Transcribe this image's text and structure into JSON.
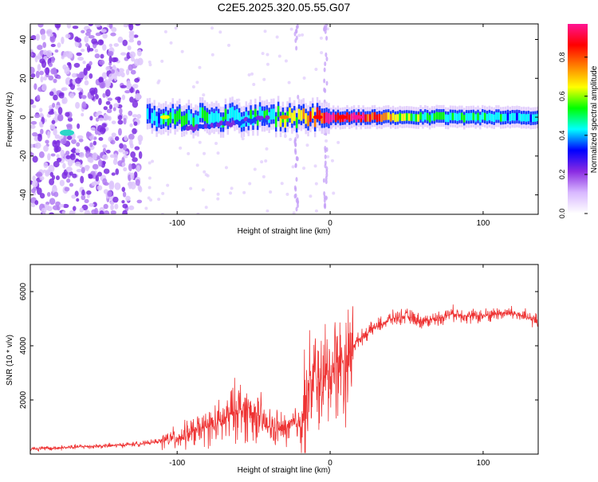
{
  "title": "C2E5.2025.320.05.55.G07",
  "colorbar": {
    "label": "Normalized spectral amplitude",
    "ticks": [
      "0.0",
      "0.2",
      "0.4",
      "0.6",
      "0.8"
    ],
    "tick_values": [
      0.0,
      0.2,
      0.4,
      0.6,
      0.8
    ],
    "range": [
      0,
      0.97
    ],
    "colors": [
      "#ffffff",
      "#d8b8ff",
      "#8a2be2",
      "#0000ff",
      "#00ffff",
      "#00ff00",
      "#ffff00",
      "#ff8000",
      "#ff0000",
      "#ff1493"
    ]
  },
  "chart_data": [
    {
      "type": "heatmap",
      "title": "C2E5.2025.320.05.55.G07",
      "xlabel": "Height of straight line (km)",
      "ylabel": "Frequency (Hz)",
      "xlim": [
        -196,
        136
      ],
      "ylim": [
        -50,
        48
      ],
      "x_ticks": [
        -100,
        0,
        100
      ],
      "x_tick_labels": [
        "-100",
        "0",
        "100"
      ],
      "y_ticks": [
        -40,
        -20,
        0,
        20,
        40
      ],
      "y_tick_labels": [
        "-40",
        "-20",
        "0",
        "20",
        "40"
      ],
      "colorbar_label": "Normalized spectral amplitude",
      "ridge": [
        {
          "x": -120,
          "center": 0,
          "amp": 0.35
        },
        {
          "x": -100,
          "center": 0,
          "amp": 0.55
        },
        {
          "x": -80,
          "center": 0,
          "amp": 0.45
        },
        {
          "x": -60,
          "center": 0,
          "amp": 0.45
        },
        {
          "x": -40,
          "center": 0,
          "amp": 0.5
        },
        {
          "x": -20,
          "center": 0,
          "amp": 0.7
        },
        {
          "x": 0,
          "center": 0,
          "amp": 0.85
        },
        {
          "x": 20,
          "center": 0,
          "amp": 0.9
        },
        {
          "x": 60,
          "center": 0,
          "amp": 0.5
        },
        {
          "x": 100,
          "center": 0,
          "amp": 0.45
        },
        {
          "x": 136,
          "center": 0,
          "amp": 0.4
        }
      ]
    },
    {
      "type": "line",
      "xlabel": "Height of straight line (km)",
      "ylabel": "SNR (10 * v/v)",
      "xlim": [
        -196,
        136
      ],
      "ylim": [
        0,
        7000
      ],
      "x_ticks": [
        -100,
        0,
        100
      ],
      "x_tick_labels": [
        "-100",
        "0",
        "100"
      ],
      "y_ticks": [
        2000,
        4000,
        6000
      ],
      "y_tick_labels": [
        "2000",
        "4000",
        "6000"
      ],
      "series": [
        {
          "name": "SNR",
          "color": "#ee3333",
          "x": [
            -196,
            -180,
            -160,
            -140,
            -120,
            -100,
            -90,
            -80,
            -70,
            -60,
            -50,
            -40,
            -30,
            -20,
            -15,
            -10,
            -5,
            0,
            5,
            10,
            15,
            20,
            30,
            40,
            50,
            60,
            70,
            80,
            90,
            100,
            110,
            120,
            136
          ],
          "values": [
            200,
            220,
            280,
            320,
            400,
            600,
            800,
            1000,
            1200,
            1700,
            1500,
            1000,
            900,
            1200,
            2200,
            2800,
            2600,
            3000,
            3400,
            3300,
            4000,
            4300,
            4700,
            5000,
            5100,
            4900,
            5000,
            5200,
            5100,
            5100,
            5200,
            5200,
            4900
          ]
        }
      ]
    }
  ]
}
